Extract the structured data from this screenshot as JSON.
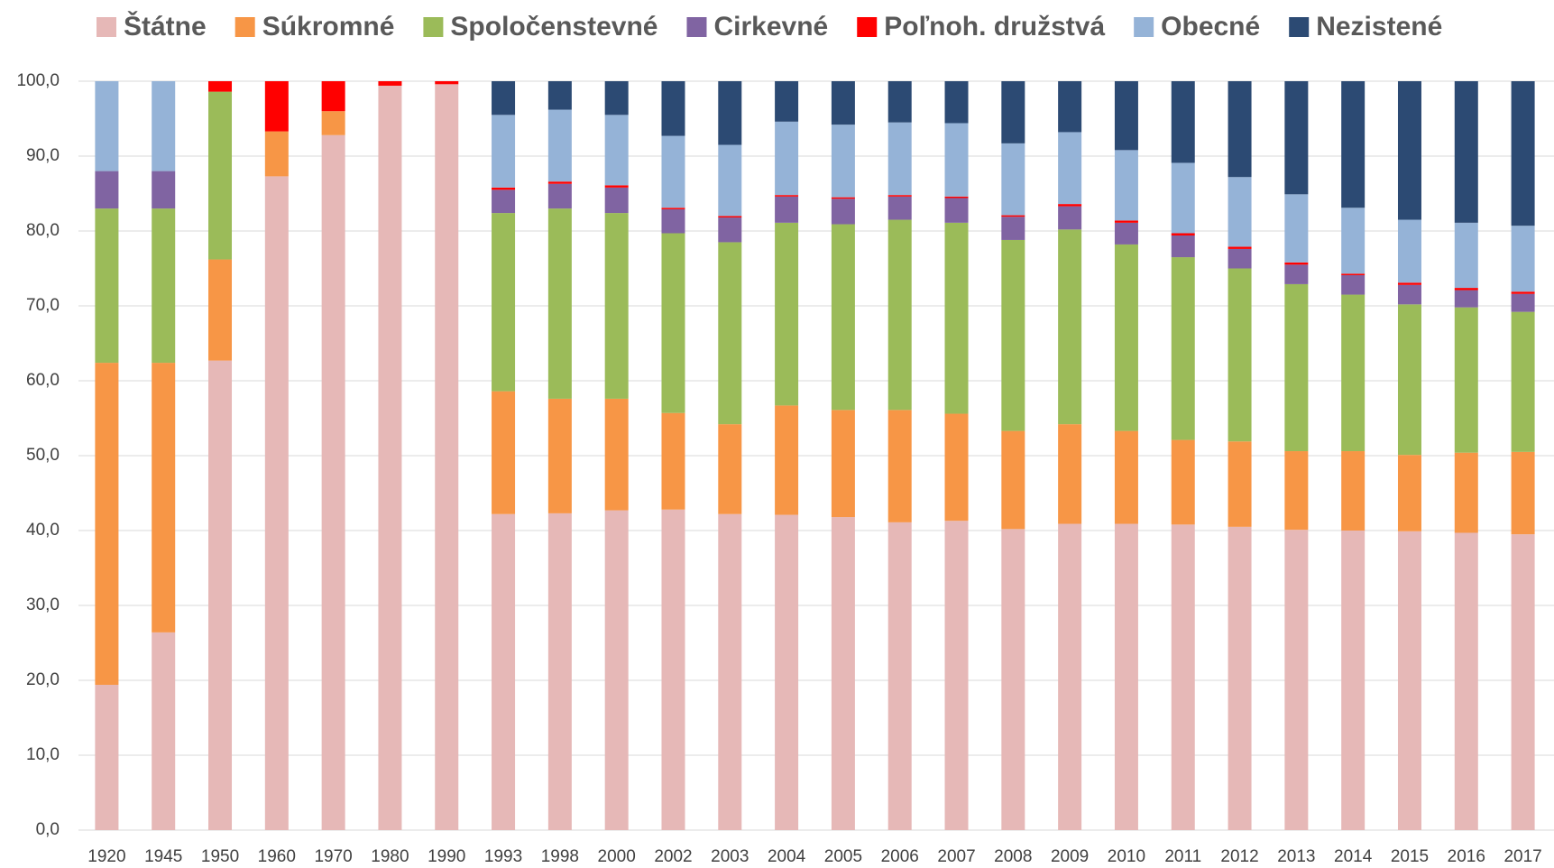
{
  "chart_data": {
    "type": "stacked_bar",
    "categories": [
      "1920",
      "1945",
      "1950",
      "1960",
      "1970",
      "1980",
      "1990",
      "1993",
      "1998",
      "2000",
      "2002",
      "2003",
      "2004",
      "2005",
      "2006",
      "2007",
      "2008",
      "2009",
      "2010",
      "2011",
      "2012",
      "2013",
      "2014",
      "2015",
      "2016",
      "2017"
    ],
    "series": [
      {
        "name": "Štátne",
        "color": "#e6b8b7",
        "values": [
          19.4,
          26.4,
          62.7,
          87.3,
          92.8,
          99.4,
          99.6,
          42.2,
          42.3,
          42.7,
          42.8,
          42.2,
          42.1,
          41.8,
          41.1,
          41.3,
          40.2,
          40.9,
          40.9,
          40.8,
          40.5,
          40.1,
          40.0,
          39.9,
          39.7,
          39.5
        ]
      },
      {
        "name": "Súkromné",
        "color": "#f79646",
        "values": [
          43.0,
          36.0,
          13.5,
          6.0,
          3.2,
          0,
          0,
          16.4,
          15.3,
          14.9,
          12.9,
          12.0,
          14.6,
          14.3,
          15.0,
          14.3,
          13.1,
          13.3,
          12.4,
          11.3,
          11.4,
          10.5,
          10.6,
          10.2,
          10.7,
          11.0
        ]
      },
      {
        "name": "Spoločenstevné",
        "color": "#9bbb59",
        "values": [
          20.6,
          20.6,
          22.4,
          0,
          0,
          0,
          0,
          23.8,
          25.4,
          24.8,
          24.0,
          24.3,
          24.4,
          24.8,
          25.4,
          25.5,
          25.5,
          26.0,
          24.9,
          24.4,
          23.1,
          22.3,
          20.9,
          20.1,
          19.4,
          18.7
        ]
      },
      {
        "name": "Cirkevné",
        "color": "#8064a2",
        "values": [
          5.0,
          5.0,
          0,
          0,
          0,
          0,
          0,
          3.1,
          3.3,
          3.4,
          3.2,
          3.3,
          3.5,
          3.4,
          3.1,
          3.3,
          3.1,
          3.1,
          2.9,
          2.9,
          2.6,
          2.6,
          2.6,
          2.6,
          2.3,
          2.4
        ]
      },
      {
        "name": "Poľnoh. družstvá",
        "color": "#ff0000",
        "values": [
          0,
          0,
          1.4,
          6.7,
          4.0,
          0.6,
          0.4,
          0.3,
          0.3,
          0.3,
          0.2,
          0.2,
          0.2,
          0.2,
          0.2,
          0.2,
          0.2,
          0.3,
          0.3,
          0.3,
          0.3,
          0.3,
          0.2,
          0.3,
          0.3,
          0.3
        ]
      },
      {
        "name": "Obecné",
        "color": "#95b3d7",
        "values": [
          12.0,
          12.0,
          0,
          0,
          0,
          0,
          0,
          9.7,
          9.6,
          9.4,
          9.6,
          9.5,
          9.8,
          9.7,
          9.7,
          9.8,
          9.6,
          9.6,
          9.4,
          9.4,
          9.3,
          9.1,
          8.8,
          8.4,
          8.7,
          8.8
        ]
      },
      {
        "name": "Nezistené",
        "color": "#2c4a73",
        "values": [
          0,
          0,
          0,
          0,
          0,
          0,
          0,
          4.5,
          3.8,
          4.5,
          7.3,
          8.5,
          5.4,
          5.8,
          5.5,
          5.6,
          8.3,
          6.8,
          9.2,
          10.9,
          12.8,
          15.1,
          16.9,
          18.5,
          18.9,
          19.3
        ]
      }
    ],
    "ylim": [
      0,
      100
    ],
    "yticks": [
      {
        "value": 0,
        "label": "0,0"
      },
      {
        "value": 10,
        "label": "10,0"
      },
      {
        "value": 20,
        "label": "20,0"
      },
      {
        "value": 30,
        "label": "30,0"
      },
      {
        "value": 40,
        "label": "40,0"
      },
      {
        "value": 50,
        "label": "50,0"
      },
      {
        "value": 60,
        "label": "60,0"
      },
      {
        "value": 70,
        "label": "70,0"
      },
      {
        "value": 80,
        "label": "80,0"
      },
      {
        "value": 90,
        "label": "90,0"
      },
      {
        "value": 100,
        "label": "100,0"
      }
    ],
    "grid": true
  }
}
